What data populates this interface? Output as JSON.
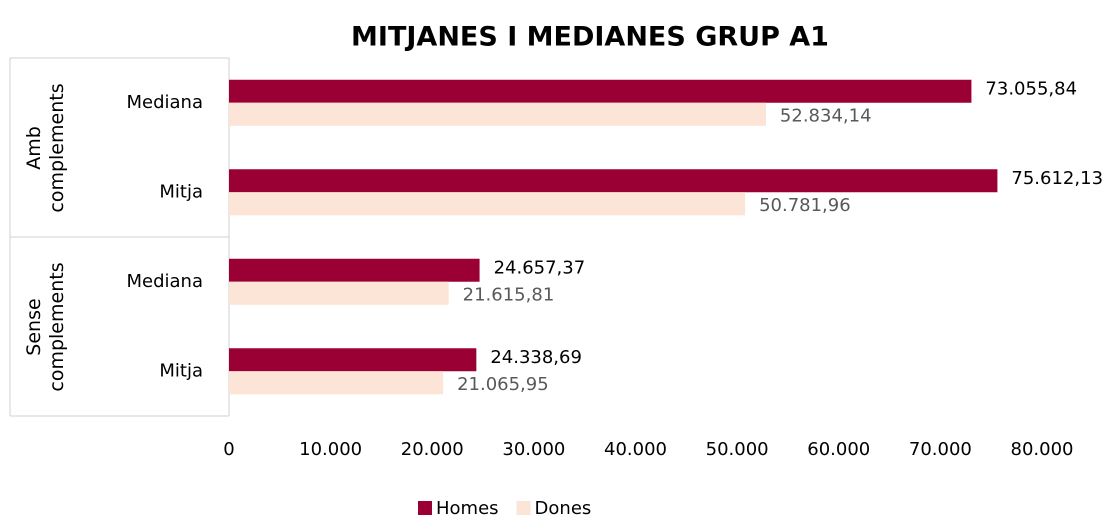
{
  "chart_data": {
    "type": "bar",
    "orientation": "horizontal",
    "title": "MITJANES I MEDIANES GRUP A1",
    "groups": [
      "Amb complements",
      "Sense complements"
    ],
    "categories": [
      "Mediana",
      "Mitja",
      "Mediana",
      "Mitja"
    ],
    "series": [
      {
        "name": "Homes",
        "color": "#9b0034",
        "values": [
          73055.84,
          75612.13,
          24657.37,
          24338.69
        ],
        "value_labels": [
          "73.055,84",
          "75.612,13",
          "24.657,37",
          "24.338,69"
        ]
      },
      {
        "name": "Dones",
        "color": "#fce4d6",
        "values": [
          52834.14,
          50781.96,
          21615.81,
          21065.95
        ],
        "value_labels": [
          "52.834,14",
          "50.781,96",
          "21.615,81",
          "21.065,95"
        ]
      }
    ],
    "xlim": [
      0,
      80000
    ],
    "xticks": [
      0,
      {
        "value": 10000,
        "label": "10.000"
      },
      {
        "value": 20000,
        "label": "20.000"
      },
      {
        "value": 30000,
        "label": "30.000"
      },
      {
        "value": 40000,
        "label": "40.000"
      },
      {
        "value": 50000,
        "label": "50.000"
      },
      {
        "value": 60000,
        "label": "60.000"
      },
      {
        "value": 70000,
        "label": "70.000"
      },
      {
        "value": 80000,
        "label": "80.000"
      }
    ],
    "grid": false,
    "legend": "bottom"
  }
}
